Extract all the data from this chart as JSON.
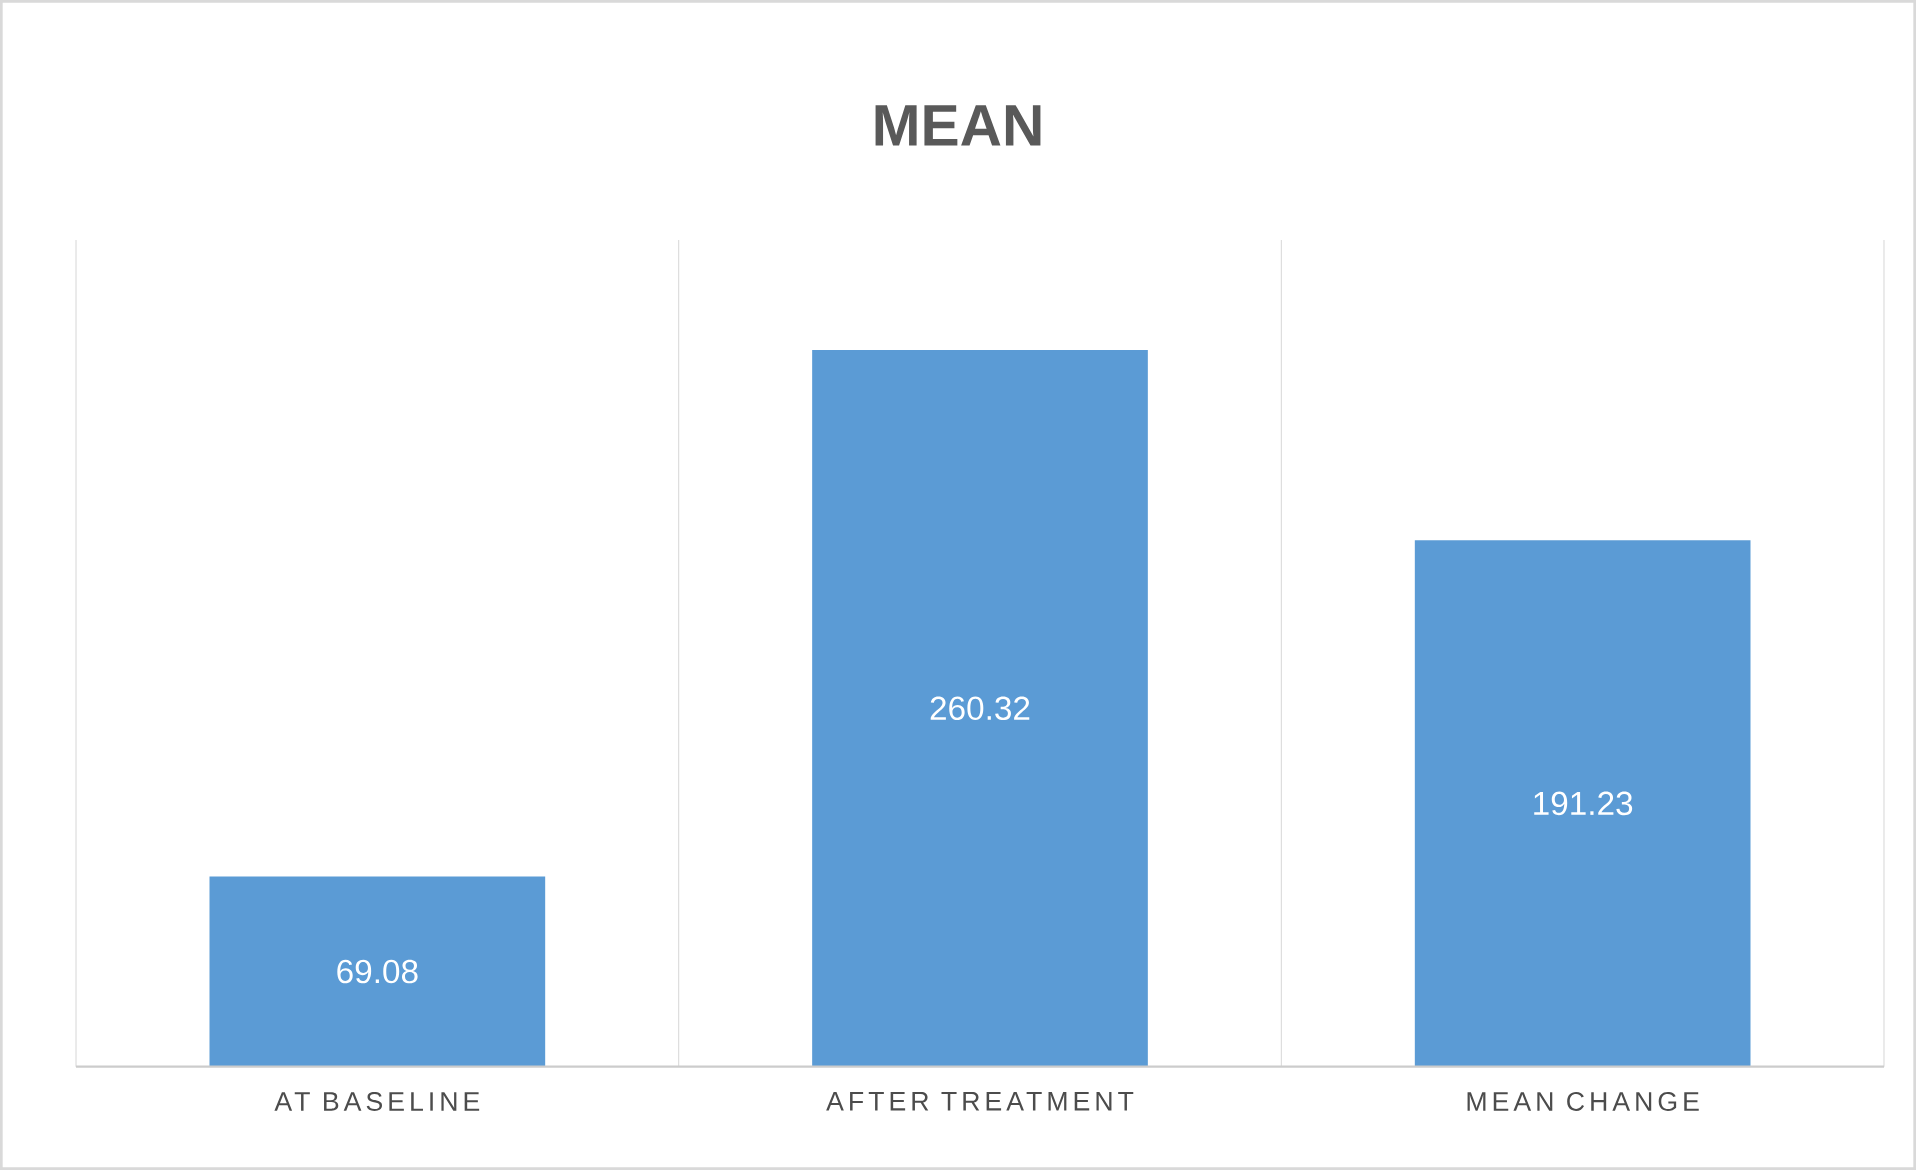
{
  "chart_data": {
    "type": "bar",
    "title": "MEAN",
    "categories": [
      "AT BASELINE",
      "AFTER TREATMENT",
      "MEAN CHANGE"
    ],
    "values": [
      69.08,
      260.32,
      191.23
    ],
    "color": "#5b9bd5",
    "data_labels": true,
    "grid": "x"
  }
}
